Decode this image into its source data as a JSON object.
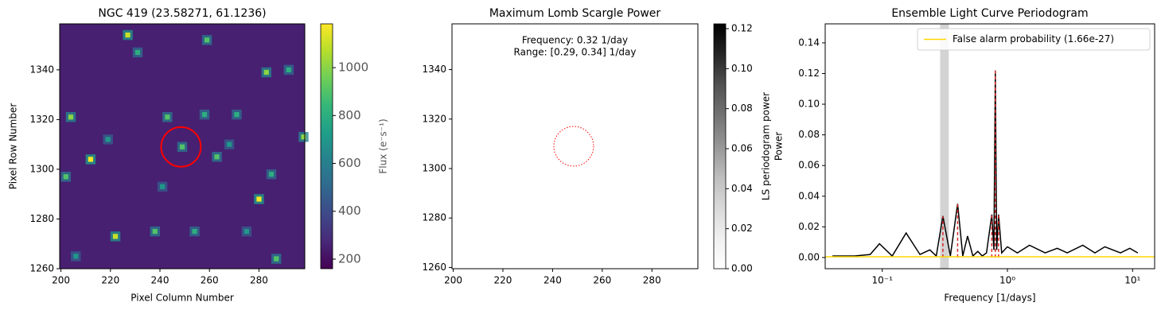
{
  "chart_data": [
    {
      "type": "image",
      "title": "NGC 419 (23.58271, 61.1236)",
      "xlabel": "Pixel Column Number",
      "ylabel": "Pixel Row Number",
      "xlim": [
        199.5,
        298.5
      ],
      "ylim": [
        1260,
        1358.5
      ],
      "xticks": [
        200,
        220,
        240,
        260,
        280
      ],
      "yticks": [
        1260,
        1280,
        1300,
        1320,
        1340
      ],
      "background": 250,
      "sources": {
        "x": [
          212,
          280,
          249,
          222,
          204,
          243,
          283,
          259,
          227,
          238,
          298,
          254,
          263,
          202,
          268,
          275,
          292,
          231,
          258,
          219,
          285,
          287,
          206,
          241,
          271
        ],
        "y": [
          1304,
          1288,
          1309,
          1273,
          1321,
          1321,
          1339,
          1352,
          1354,
          1275,
          1313,
          1275,
          1305,
          1297,
          1310,
          1275,
          1340,
          1347,
          1322,
          1312,
          1298,
          1264,
          1265,
          1293,
          1322
        ],
        "values": [
          1170,
          1170,
          900,
          1100,
          1000,
          900,
          1000,
          900,
          1100,
          900,
          1000,
          800,
          900,
          900,
          700,
          700,
          800,
          800,
          800,
          700,
          800,
          900,
          700,
          700,
          800
        ]
      },
      "aperture": {
        "x": 248.5,
        "y": 1309,
        "r": 8,
        "color": "#ff0000"
      },
      "colorbar": {
        "label": "Flux (e⁻s⁻¹)",
        "colormap": "viridis",
        "lim": [
          160,
          1183
        ],
        "ticks": [
          200,
          400,
          600,
          800,
          1000
        ]
      }
    },
    {
      "type": "image",
      "title": "Maximum Lomb Scargle Power",
      "annotations": [
        "Frequency: 0.32 1/day",
        "Range: [0.29, 0.34] 1/day"
      ],
      "xlim": [
        199.5,
        298.5
      ],
      "ylim": [
        1259.5,
        1358.5
      ],
      "xticks": [
        200,
        220,
        240,
        260,
        280
      ],
      "yticks": [
        1260,
        1280,
        1300,
        1320,
        1340
      ],
      "aperture": {
        "x": 248.5,
        "y": 1309,
        "r": 8,
        "color": "#ff0000"
      },
      "colorbar": {
        "label": "LS periodogram power",
        "colormap": "Greys",
        "lim": [
          0,
          0.1224
        ],
        "ticks": [
          {
            "value": 0,
            "label": "0.00"
          },
          {
            "value": 0.02,
            "label": "0.02"
          },
          {
            "value": 0.04,
            "label": "0.04"
          },
          {
            "value": 0.06,
            "label": "0.06"
          },
          {
            "value": 0.08,
            "label": "0.08"
          },
          {
            "value": 0.1,
            "label": "0.10"
          },
          {
            "value": 0.12,
            "label": "0.12"
          }
        ]
      }
    },
    {
      "type": "line",
      "title": "Ensemble Light Curve Periodogram",
      "xlabel": "Frequency [1/days]",
      "ylabel": "Power",
      "xscale": "log",
      "xlim": [
        0.035,
        15
      ],
      "ylim": [
        -0.0073,
        0.1524
      ],
      "xticks": [
        {
          "value": 0.1,
          "label": "10⁻¹"
        },
        {
          "value": 1,
          "label": "10⁰"
        },
        {
          "value": 10,
          "label": "10¹"
        }
      ],
      "yticks": [
        {
          "value": 0,
          "label": "0.00"
        },
        {
          "value": 0.02,
          "label": "0.02"
        },
        {
          "value": 0.04,
          "label": "0.04"
        },
        {
          "value": 0.06,
          "label": "0.06"
        },
        {
          "value": 0.08,
          "label": "0.08"
        },
        {
          "value": 0.1,
          "label": "0.10"
        },
        {
          "value": 0.12,
          "label": "0.12"
        },
        {
          "value": 0.14,
          "label": "0.14"
        }
      ],
      "color": "#000000",
      "x": [
        0.04,
        0.06,
        0.08,
        0.095,
        0.12,
        0.155,
        0.2,
        0.24,
        0.27,
        0.305,
        0.35,
        0.4,
        0.44,
        0.48,
        0.53,
        0.58,
        0.63,
        0.68,
        0.75,
        0.78,
        0.8,
        0.82,
        0.85,
        0.9,
        1.0,
        1.2,
        1.5,
        2,
        2.5,
        3,
        4,
        5,
        6,
        8,
        9.5,
        11
      ],
      "values": [
        0.001,
        0.001,
        0.002,
        0.009,
        0.001,
        0.016,
        0.002,
        0.005,
        0.001,
        0.027,
        0.001,
        0.035,
        0.001,
        0.014,
        0.001,
        0.004,
        0.001,
        0.003,
        0.028,
        0.005,
        0.122,
        0.005,
        0.028,
        0.003,
        0.007,
        0.003,
        0.008,
        0.003,
        0.006,
        0.003,
        0.008,
        0.003,
        0.007,
        0.003,
        0.006,
        0.003
      ],
      "peaks": {
        "x": [
          0.305,
          0.4,
          0.75,
          0.8,
          0.85
        ],
        "values": [
          0.027,
          0.035,
          0.028,
          0.122,
          0.028
        ],
        "color": "#d62728"
      },
      "span": [
        0.29,
        0.34
      ],
      "threshold": {
        "name": "False alarm probability (1.66e-27)",
        "value": 0.0005,
        "color": "#ffd700"
      },
      "legend": "upper right"
    }
  ]
}
